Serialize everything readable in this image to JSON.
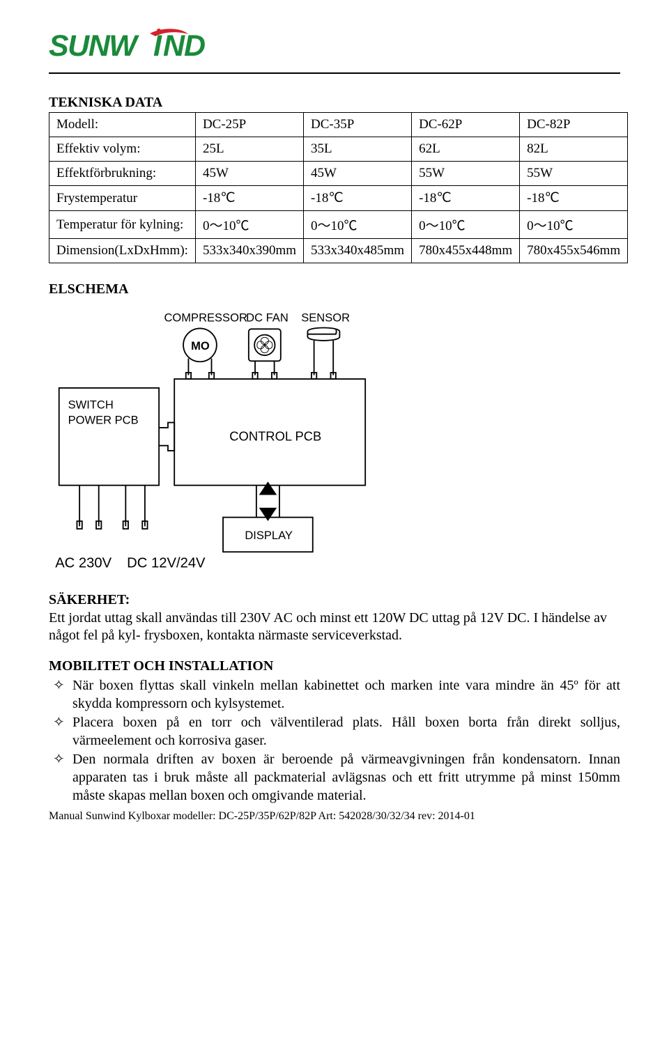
{
  "logo": {
    "brand_text": "SUNWIND",
    "letter_color": "#1a8a3a",
    "swoosh_color": "#d4222a",
    "dot_color": "#d4222a"
  },
  "headings": {
    "tekniska": "TEKNISKA DATA",
    "elschema": "ELSCHEMA",
    "sakerhet": "SÄKERHET:",
    "mobilitet": "MOBILITET OCH INSTALLATION"
  },
  "spec_table": {
    "rows": [
      {
        "label": "Modell:",
        "cells": [
          "DC-25P",
          "DC-35P",
          "DC-62P",
          "DC-82P"
        ]
      },
      {
        "label": "Effektiv volym:",
        "cells": [
          "25L",
          "35L",
          "62L",
          "82L"
        ]
      },
      {
        "label": "Effektförbrukning:",
        "cells": [
          "45W",
          "45W",
          "55W",
          "55W"
        ]
      },
      {
        "label": "Frystemperatur",
        "cells": [
          "-18℃",
          "-18℃",
          "-18℃",
          "-18℃"
        ]
      },
      {
        "label": "Temperatur för kylning:",
        "cells": [
          "0～10℃",
          "0～10℃",
          "0～10℃",
          "0～10℃"
        ]
      },
      {
        "label": "Dimension(LxDxHmm):",
        "cells": [
          "533x340x390mm",
          "533x340x485mm",
          "780x455x448mm",
          "780x455x546mm"
        ]
      }
    ]
  },
  "diagram": {
    "labels": {
      "compressor": "COMPRESSOR",
      "dcfan": "DC FAN",
      "sensor": "SENSOR",
      "mo": "MO",
      "switch1": "SWITCH",
      "switch2": "POWER PCB",
      "control": "CONTROL PCB",
      "display": "DISPLAY",
      "ac": "AC 230V",
      "dc": "DC 12V/24V"
    },
    "stroke": "#000000",
    "text_color": "#000000",
    "font_family": "Arial, Helvetica, sans-serif"
  },
  "safety_text": "Ett jordat uttag skall användas till 230V AC och minst ett 120W DC uttag på 12V DC. I händelse av något fel på kyl- frysboxen, kontakta närmaste serviceverkstad.",
  "mob_bullets": [
    "När boxen flyttas skall vinkeln mellan kabinettet och marken inte vara mindre än 45º för att skydda kompressorn och kylsystemet.",
    "Placera boxen på en torr och välventilerad plats. Håll boxen borta från direkt solljus, värmeelement och korrosiva gaser.",
    "Den normala driften av boxen är beroende på värmeavgivningen från kondensatorn. Innan apparaten tas i bruk måste all packmaterial avlägsnas och ett fritt utrymme på minst 150mm måste skapas mellan boxen och omgivande material."
  ],
  "bullet_glyph": "✧",
  "footer": "Manual Sunwind Kylboxar modeller: DC-25P/35P/62P/82P Art: 542028/30/32/34 rev: 2014-01"
}
